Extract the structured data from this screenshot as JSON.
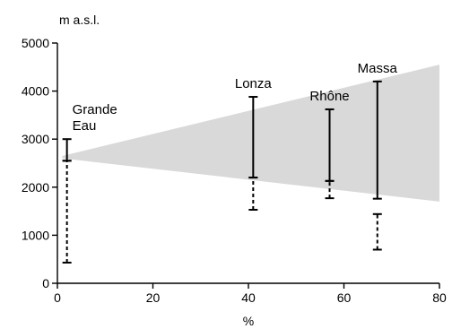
{
  "chart_data": {
    "type": "range",
    "ylabel": "m a.s.l.",
    "xlabel": "%",
    "xlim": [
      0,
      80
    ],
    "ylim": [
      0,
      5000
    ],
    "xticks": [
      0,
      20,
      40,
      60,
      80
    ],
    "yticks": [
      0,
      1000,
      2000,
      3000,
      4000,
      5000
    ],
    "grid": false,
    "band": {
      "x": [
        1,
        80
      ],
      "upper": [
        2650,
        4550
      ],
      "lower": [
        2600,
        1700
      ],
      "color": "#d9d9d9"
    },
    "rivers": [
      {
        "label_lines": [
          "Grande",
          "Eau"
        ],
        "x": 2,
        "solid": [
          2550,
          3000
        ],
        "dashed": [
          430,
          2550
        ]
      },
      {
        "label_lines": [
          "Lonza"
        ],
        "x": 41,
        "solid": [
          2200,
          3880
        ],
        "dashed": [
          1530,
          2200
        ]
      },
      {
        "label_lines": [
          "Rhône"
        ],
        "x": 57,
        "solid": [
          2130,
          3620
        ],
        "dashed": [
          1770,
          2130
        ]
      },
      {
        "label_lines": [
          "Massa"
        ],
        "x": 67,
        "solid": [
          1760,
          4200
        ],
        "dashed": [
          700,
          1440
        ]
      }
    ]
  }
}
